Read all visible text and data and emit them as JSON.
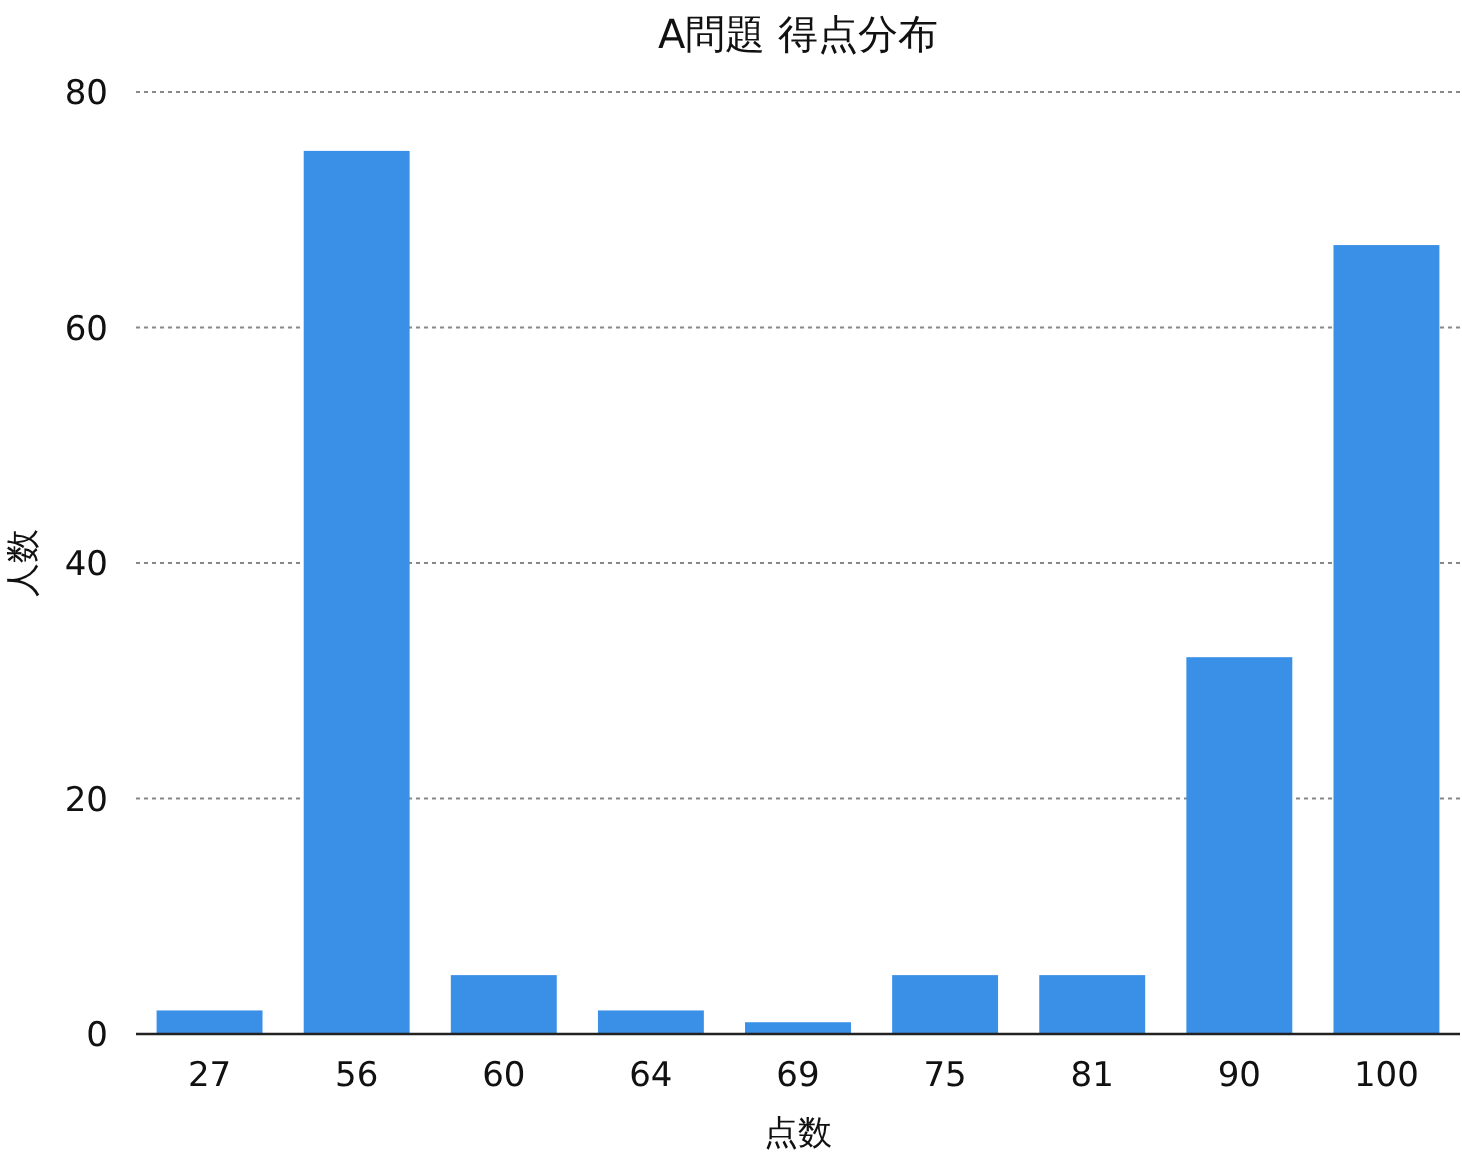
{
  "chart_data": {
    "type": "bar",
    "title": "A問題 得点分布",
    "xlabel": "点数",
    "ylabel": "人数",
    "categories": [
      "27",
      "56",
      "60",
      "64",
      "69",
      "75",
      "81",
      "90",
      "100"
    ],
    "values": [
      2,
      75,
      5,
      2,
      1,
      5,
      5,
      32,
      67
    ],
    "color": "#3a8fe6",
    "ylim": [
      0,
      80
    ],
    "yticks": [
      0,
      20,
      40,
      60,
      80
    ],
    "grid": "y"
  }
}
